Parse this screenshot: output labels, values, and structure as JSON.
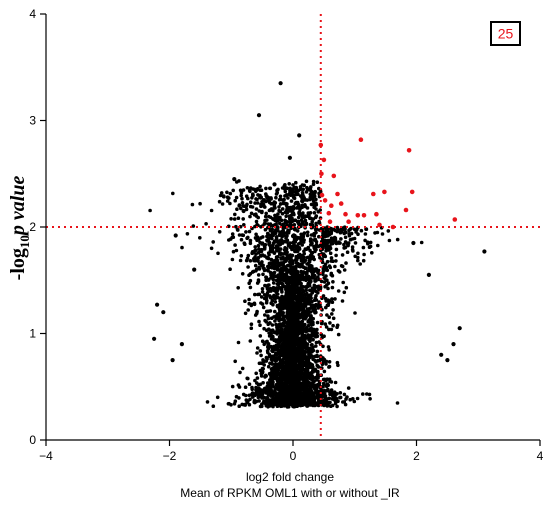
{
  "chart_data": {
    "type": "scatter",
    "title": "",
    "xlabel": "log2 fold change",
    "xlabel_line2": "Mean of RPKM OML1 with or without _IR",
    "ylabel": {
      "prefix": "-log",
      "sub": "10",
      "p": "p",
      "suffix": " value"
    },
    "xlim": [
      -4,
      4
    ],
    "ylim": [
      0,
      4
    ],
    "x_ticks": [
      -4,
      -2,
      0,
      2,
      4
    ],
    "x_tick_labels": [
      "−4",
      "−2",
      "0",
      "2",
      "4"
    ],
    "y_ticks": [
      0,
      1,
      2,
      3,
      4
    ],
    "y_tick_labels": [
      "0",
      "1",
      "2",
      "3",
      "4"
    ],
    "grid": false,
    "threshold_x": 0.45,
    "threshold_y": 2,
    "significant_count_label": "25",
    "colors": {
      "points": "#000000",
      "significant": "#e8141b",
      "threshold": "#e8141b"
    },
    "series": [
      {
        "color": "#e8141b",
        "points": [
          [
            0.45,
            2.77
          ],
          [
            0.5,
            2.63
          ],
          [
            0.46,
            2.5
          ],
          [
            0.47,
            2.3
          ],
          [
            0.52,
            2.25
          ],
          [
            0.58,
            2.13
          ],
          [
            0.6,
            2.05
          ],
          [
            0.62,
            2.2
          ],
          [
            0.66,
            2.48
          ],
          [
            0.72,
            2.31
          ],
          [
            0.78,
            2.22
          ],
          [
            0.85,
            2.12
          ],
          [
            0.9,
            2.05
          ],
          [
            1.05,
            2.11
          ],
          [
            1.1,
            2.82
          ],
          [
            1.15,
            2.11
          ],
          [
            1.3,
            2.31
          ],
          [
            1.35,
            2.12
          ],
          [
            1.4,
            2.02
          ],
          [
            1.48,
            2.33
          ],
          [
            1.62,
            2.0
          ],
          [
            1.83,
            2.16
          ],
          [
            1.88,
            2.72
          ],
          [
            1.93,
            2.33
          ],
          [
            2.62,
            2.07
          ]
        ]
      }
    ],
    "cloud": {
      "description_free": true,
      "center_x": 0.0,
      "floor_y": 0.31,
      "n_points": 3600,
      "outliers": [
        [
          -0.2,
          3.35
        ],
        [
          -0.55,
          3.05
        ],
        [
          0.1,
          2.86
        ],
        [
          -0.05,
          2.65
        ],
        [
          -0.95,
          2.45
        ],
        [
          -0.3,
          2.4
        ],
        [
          -0.8,
          2.15
        ],
        [
          -1.9,
          1.92
        ],
        [
          -1.6,
          1.6
        ],
        [
          -2.2,
          1.27
        ],
        [
          -2.1,
          1.2
        ],
        [
          -2.25,
          0.95
        ],
        [
          -1.8,
          0.9
        ],
        [
          -1.95,
          0.75
        ],
        [
          3.1,
          1.77
        ],
        [
          2.2,
          1.55
        ],
        [
          2.7,
          1.05
        ],
        [
          2.6,
          0.9
        ],
        [
          2.4,
          0.8
        ],
        [
          2.5,
          0.75
        ],
        [
          1.95,
          1.85
        ],
        [
          0.85,
          1.95
        ],
        [
          0.35,
          2.2
        ],
        [
          -0.1,
          2.3
        ]
      ]
    }
  }
}
